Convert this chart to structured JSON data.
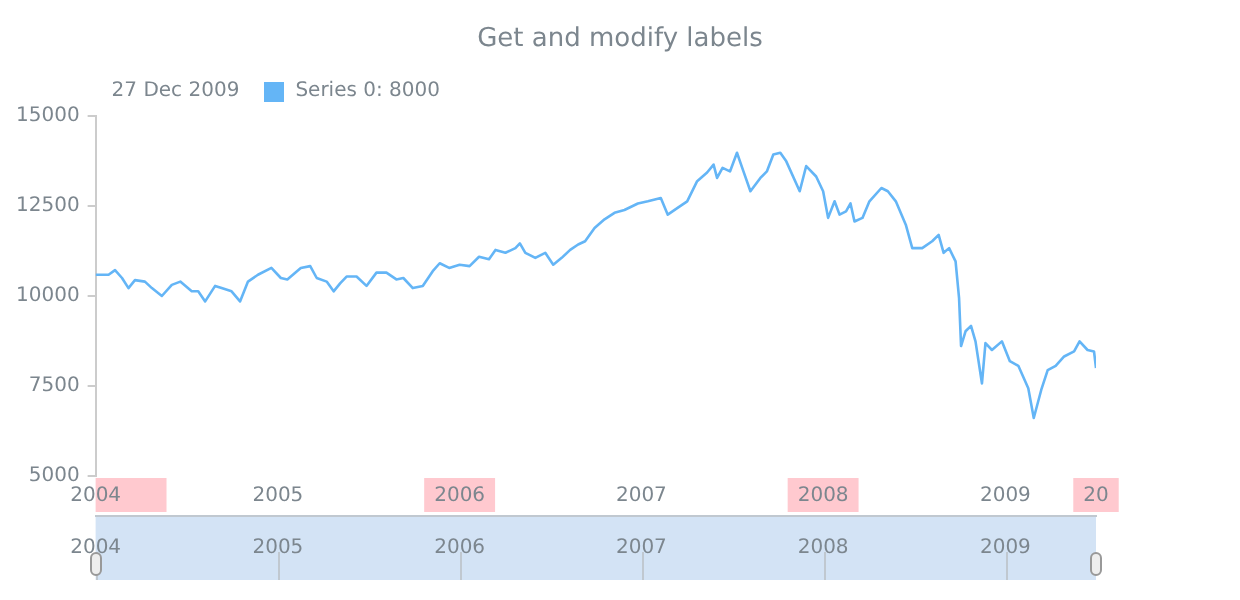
{
  "chart_data": {
    "type": "line",
    "title": "Get and modify labels",
    "annotations": [
      "27 Dec 2009"
    ],
    "legend": "top left",
    "x": [
      "2004-01-01",
      "2004-01-27",
      "2004-02-09",
      "2004-02-23",
      "2004-03-07",
      "2004-03-20",
      "2004-04-09",
      "2004-04-23",
      "2004-05-13",
      "2004-06-02",
      "2004-06-19",
      "2004-07-12",
      "2004-07-25",
      "2004-08-08",
      "2004-08-28",
      "2004-09-10",
      "2004-09-30",
      "2004-10-17",
      "2004-11-02",
      "2004-11-22",
      "2004-12-19",
      "2005-01-07",
      "2005-01-20",
      "2005-02-16",
      "2005-03-07",
      "2005-03-20",
      "2005-04-09",
      "2005-04-23",
      "2005-05-06",
      "2005-05-19",
      "2005-06-08",
      "2005-06-28",
      "2005-07-18",
      "2005-08-07",
      "2005-08-27",
      "2005-09-10",
      "2005-09-29",
      "2005-10-19",
      "2005-11-08",
      "2005-11-22",
      "2005-12-11",
      "2006-01-01",
      "2006-01-21",
      "2006-02-09",
      "2006-03-01",
      "2006-03-14",
      "2006-04-03",
      "2006-04-23",
      "2006-05-02",
      "2006-05-13",
      "2006-06-02",
      "2006-06-22",
      "2006-07-08",
      "2006-07-25",
      "2006-08-11",
      "2006-08-27",
      "2006-09-10",
      "2006-09-29",
      "2006-10-19",
      "2006-11-08",
      "2006-11-28",
      "2006-12-25",
      "2007-01-14",
      "2007-02-09",
      "2007-02-23",
      "2007-03-14",
      "2007-04-03",
      "2007-04-23",
      "2007-05-13",
      "2007-05-26",
      "2007-06-02",
      "2007-06-13",
      "2007-06-28",
      "2007-07-12",
      "2007-07-25",
      "2007-08-08",
      "2007-08-28",
      "2007-09-10",
      "2007-09-23",
      "2007-10-07",
      "2007-10-19",
      "2007-11-15",
      "2007-11-28",
      "2007-12-18",
      "2008-01-01",
      "2008-01-11",
      "2008-01-24",
      "2008-02-03",
      "2008-02-16",
      "2008-02-25",
      "2008-03-04",
      "2008-03-20",
      "2008-04-03",
      "2008-04-27",
      "2008-05-10",
      "2008-05-26",
      "2008-06-15",
      "2008-06-28",
      "2008-07-18",
      "2008-08-07",
      "2008-08-20",
      "2008-08-30",
      "2008-09-10",
      "2008-09-23",
      "2008-09-30",
      "2008-10-04",
      "2008-10-13",
      "2008-10-24",
      "2008-11-02",
      "2008-11-15",
      "2008-11-22",
      "2008-12-05",
      "2008-12-25",
      "2009-01-10",
      "2009-01-27",
      "2009-02-16",
      "2009-02-27",
      "2009-03-14",
      "2009-03-27",
      "2009-04-12",
      "2009-04-29",
      "2009-05-19",
      "2009-05-30",
      "2009-06-15",
      "2009-06-28",
      "2009-07-02"
    ],
    "series": [
      {
        "name": "Series 0: 8000",
        "color": "#64b5f6",
        "values": [
          10590,
          10590,
          10720,
          10500,
          10220,
          10440,
          10400,
          10220,
          10000,
          10310,
          10400,
          10130,
          10130,
          9850,
          10280,
          10220,
          10130,
          9850,
          10400,
          10590,
          10780,
          10500,
          10460,
          10780,
          10830,
          10500,
          10400,
          10130,
          10350,
          10540,
          10540,
          10280,
          10650,
          10650,
          10460,
          10500,
          10220,
          10280,
          10690,
          10910,
          10780,
          10870,
          10830,
          11090,
          11020,
          11280,
          11200,
          11330,
          11460,
          11200,
          11060,
          11200,
          10870,
          11060,
          11280,
          11430,
          11520,
          11890,
          12130,
          12310,
          12390,
          12570,
          12630,
          12720,
          12260,
          12440,
          12630,
          13190,
          13430,
          13650,
          13280,
          13560,
          13460,
          13980,
          13460,
          12910,
          13280,
          13460,
          13930,
          13980,
          13740,
          12910,
          13610,
          13320,
          12910,
          12170,
          12630,
          12260,
          12350,
          12570,
          12070,
          12170,
          12630,
          13000,
          12910,
          12630,
          11980,
          11330,
          11330,
          11520,
          11700,
          11200,
          11330,
          10960,
          9940,
          8610,
          9020,
          9170,
          8740,
          7570,
          8690,
          8500,
          8740,
          8190,
          8060,
          7440,
          6610,
          7390,
          7940,
          8060,
          8320,
          8460,
          8740,
          8500,
          8460,
          8000
        ]
      }
    ],
    "xlim": [
      "2004-01-01",
      "2009-07-02"
    ],
    "xticks": [
      {
        "value": "2004-01-01",
        "label": "2004"
      },
      {
        "value": "2005-01-01",
        "label": "2005"
      },
      {
        "value": "2006-01-01",
        "label": "2006"
      },
      {
        "value": "2007-01-01",
        "label": "2007"
      },
      {
        "value": "2008-01-01",
        "label": "2008"
      },
      {
        "value": "2009-01-01",
        "label": "2009"
      },
      {
        "value": "2009-07-02",
        "label": "20"
      }
    ],
    "x2lim": [
      "2004-01-01",
      "2009-07-02"
    ],
    "x2ticks": [
      {
        "value": "2004-01-01",
        "label": "2004"
      },
      {
        "value": "2005-01-01",
        "label": "2005"
      },
      {
        "value": "2006-01-01",
        "label": "2006"
      },
      {
        "value": "2007-01-01",
        "label": "2007"
      },
      {
        "value": "2008-01-01",
        "label": "2008"
      },
      {
        "value": "2009-01-01",
        "label": "2009"
      }
    ],
    "ylim": [
      5000,
      15000
    ],
    "yticks": [
      5000,
      7500,
      10000,
      12500,
      15000
    ]
  }
}
